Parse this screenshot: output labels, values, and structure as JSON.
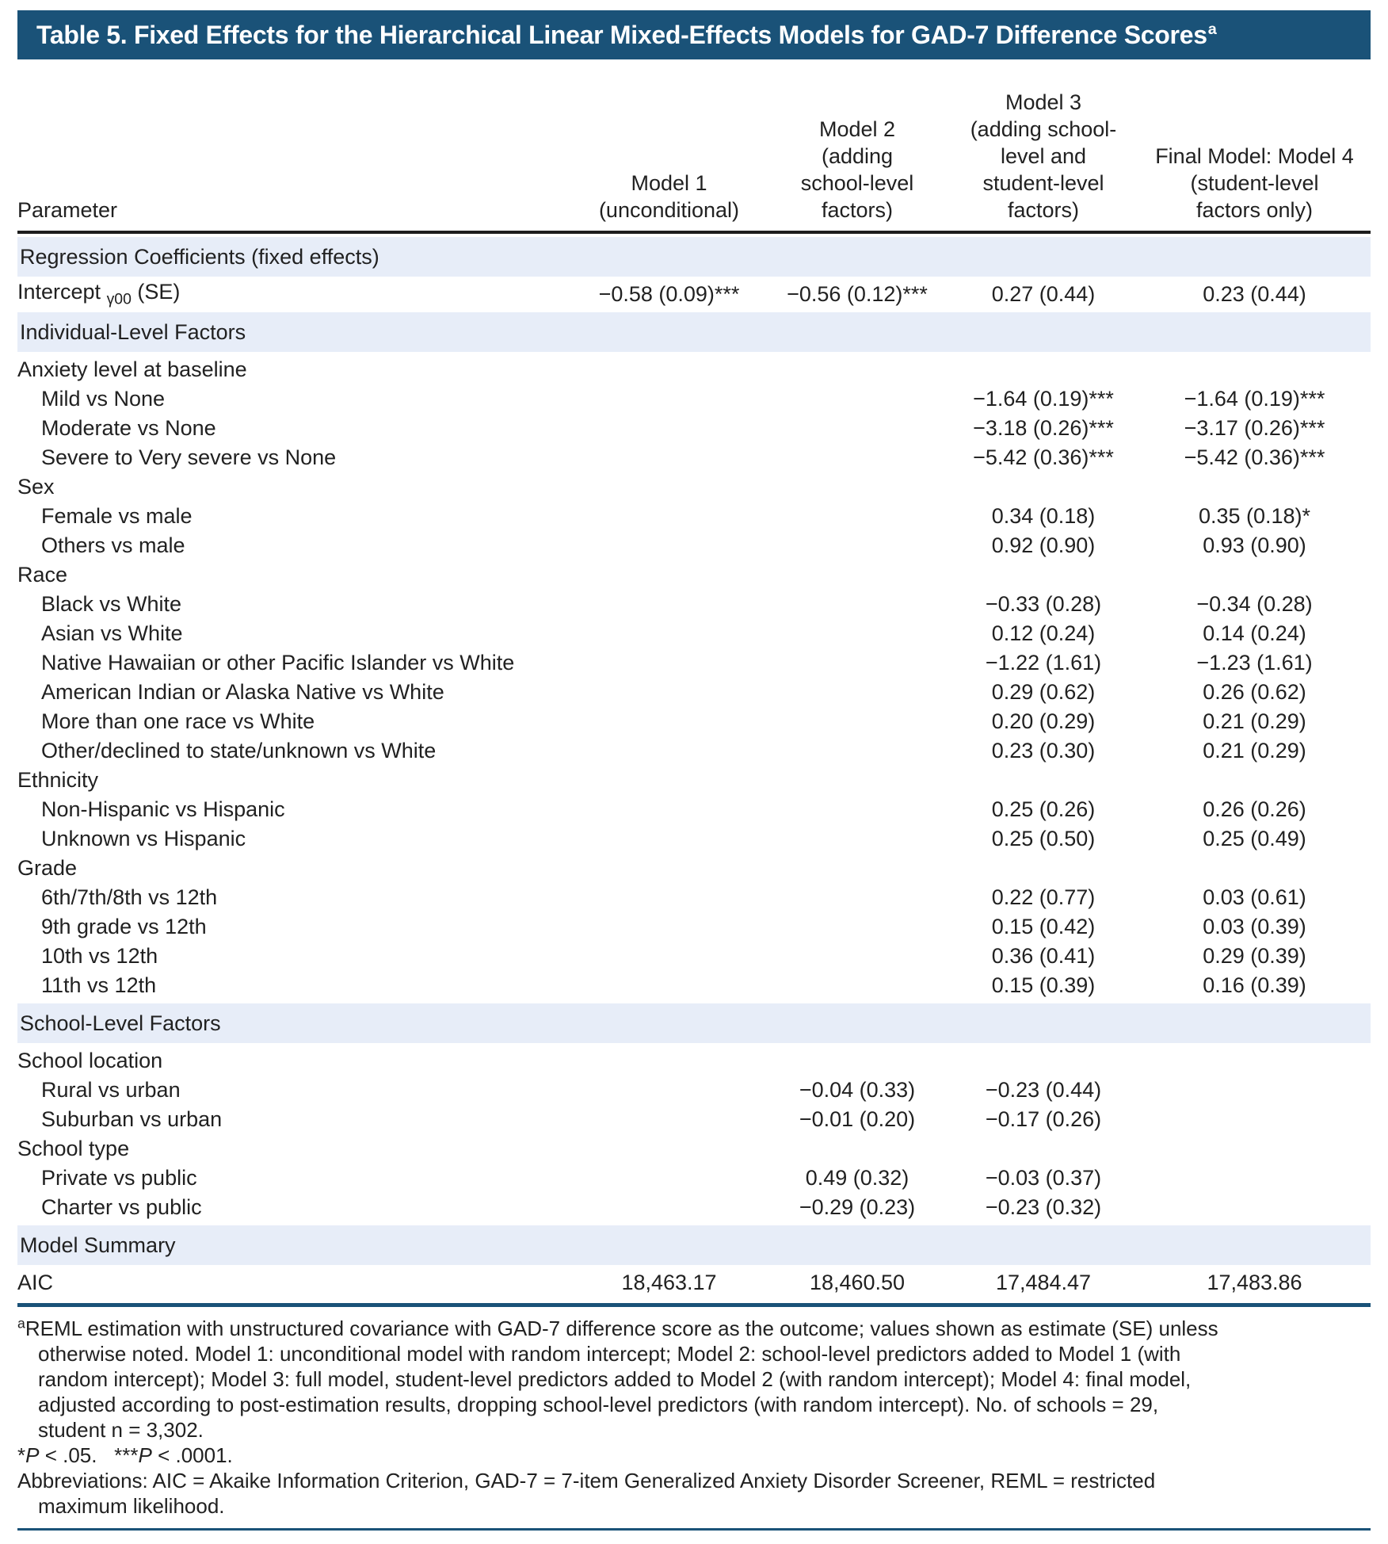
{
  "title": {
    "text": "Table 5. Fixed Effects for the Hierarchical Linear Mixed-Effects Models for GAD-7 Difference Scores",
    "superscript": "a"
  },
  "colors": {
    "title_bg": "#1a5278",
    "band_bg": "#e7edf8",
    "header_rule": "#1c1c1c",
    "blue_rule": "#1a5278",
    "text": "#212121"
  },
  "table": {
    "param_header": "Parameter",
    "model_headers": [
      "Model 1\n(unconditional)",
      "Model 2\n(adding\nschool-level\nfactors)",
      "Model 3\n(adding school-\nlevel and\nstudent-level\nfactors)",
      "Final Model: Model 4\n(student-level\nfactors only)"
    ],
    "rows": [
      {
        "type": "section",
        "label": "Regression Coefficients (fixed effects)"
      },
      {
        "type": "data",
        "label_pre": "Intercept ",
        "label_sub": "γ00",
        "label_post": " (SE)",
        "indent": 0,
        "values": [
          "−0.58 (0.09)***",
          "−0.56 (0.12)***",
          "0.27 (0.44)",
          "0.23 (0.44)"
        ]
      },
      {
        "type": "section",
        "label": "Individual-Level Factors"
      },
      {
        "type": "group",
        "label": "Anxiety level at baseline"
      },
      {
        "type": "data",
        "label": "Mild vs None",
        "indent": 1,
        "values": [
          "",
          "",
          "−1.64 (0.19)***",
          "−1.64 (0.19)***"
        ]
      },
      {
        "type": "data",
        "label": "Moderate vs None",
        "indent": 1,
        "values": [
          "",
          "",
          "−3.18 (0.26)***",
          "−3.17 (0.26)***"
        ]
      },
      {
        "type": "data",
        "label": "Severe to Very severe vs None",
        "indent": 1,
        "values": [
          "",
          "",
          "−5.42 (0.36)***",
          "−5.42 (0.36)***"
        ]
      },
      {
        "type": "group",
        "label": "Sex"
      },
      {
        "type": "data",
        "label": "Female vs male",
        "indent": 1,
        "values": [
          "",
          "",
          "0.34 (0.18)",
          "0.35 (0.18)*"
        ]
      },
      {
        "type": "data",
        "label": "Others vs male",
        "indent": 1,
        "values": [
          "",
          "",
          "0.92 (0.90)",
          "0.93 (0.90)"
        ]
      },
      {
        "type": "group",
        "label": "Race"
      },
      {
        "type": "data",
        "label": "Black vs White",
        "indent": 1,
        "values": [
          "",
          "",
          "−0.33 (0.28)",
          "−0.34 (0.28)"
        ]
      },
      {
        "type": "data",
        "label": "Asian vs White",
        "indent": 1,
        "values": [
          "",
          "",
          "0.12 (0.24)",
          "0.14 (0.24)"
        ]
      },
      {
        "type": "data",
        "label": "Native Hawaiian or other Pacific Islander vs White",
        "indent": 1,
        "values": [
          "",
          "",
          "−1.22 (1.61)",
          "−1.23 (1.61)"
        ]
      },
      {
        "type": "data",
        "label": "American Indian or Alaska Native vs White",
        "indent": 1,
        "values": [
          "",
          "",
          "0.29 (0.62)",
          "0.26 (0.62)"
        ]
      },
      {
        "type": "data",
        "label": "More than one race vs White",
        "indent": 1,
        "values": [
          "",
          "",
          "0.20 (0.29)",
          "0.21 (0.29)"
        ]
      },
      {
        "type": "data",
        "label": "Other/declined to state/unknown vs White",
        "indent": 1,
        "values": [
          "",
          "",
          "0.23 (0.30)",
          "0.21 (0.29)"
        ]
      },
      {
        "type": "group",
        "label": "Ethnicity"
      },
      {
        "type": "data",
        "label": "Non-Hispanic vs Hispanic",
        "indent": 1,
        "values": [
          "",
          "",
          "0.25 (0.26)",
          "0.26 (0.26)"
        ]
      },
      {
        "type": "data",
        "label": "Unknown vs Hispanic",
        "indent": 1,
        "values": [
          "",
          "",
          "0.25 (0.50)",
          "0.25 (0.49)"
        ]
      },
      {
        "type": "group",
        "label": "Grade"
      },
      {
        "type": "data",
        "label": "6th/7th/8th vs 12th",
        "indent": 1,
        "values": [
          "",
          "",
          "0.22 (0.77)",
          "0.03 (0.61)"
        ]
      },
      {
        "type": "data",
        "label": "9th grade vs 12th",
        "indent": 1,
        "values": [
          "",
          "",
          "0.15 (0.42)",
          "0.03 (0.39)"
        ]
      },
      {
        "type": "data",
        "label": "10th vs 12th",
        "indent": 1,
        "values": [
          "",
          "",
          "0.36 (0.41)",
          "0.29 (0.39)"
        ]
      },
      {
        "type": "data",
        "label": "11th vs 12th",
        "indent": 1,
        "values": [
          "",
          "",
          "0.15 (0.39)",
          "0.16 (0.39)"
        ]
      },
      {
        "type": "section",
        "label": "School-Level Factors"
      },
      {
        "type": "group",
        "label": "School location"
      },
      {
        "type": "data",
        "label": "Rural vs urban",
        "indent": 1,
        "values": [
          "",
          "−0.04 (0.33)",
          "−0.23 (0.44)",
          ""
        ]
      },
      {
        "type": "data",
        "label": "Suburban vs urban",
        "indent": 1,
        "values": [
          "",
          "−0.01 (0.20)",
          "−0.17 (0.26)",
          ""
        ]
      },
      {
        "type": "group",
        "label": "School type"
      },
      {
        "type": "data",
        "label": "Private vs public",
        "indent": 1,
        "values": [
          "",
          "0.49 (0.32)",
          "−0.03 (0.37)",
          ""
        ]
      },
      {
        "type": "data",
        "label": "Charter vs public",
        "indent": 1,
        "values": [
          "",
          "−0.29 (0.23)",
          "−0.23 (0.32)",
          ""
        ]
      },
      {
        "type": "section",
        "label": "Model Summary"
      },
      {
        "type": "data",
        "label": "AIC",
        "indent": 0,
        "values": [
          "18,463.17",
          "18,460.50",
          "17,484.47",
          "17,483.86"
        ]
      }
    ]
  },
  "footnotes": {
    "a": {
      "sup": "a",
      "text": "REML estimation with unstructured covariance with GAD-7 difference score as the outcome; values shown as estimate (SE) unless otherwise noted. Model 1: unconditional model with random intercept; Model 2: school-level predictors added to Model 1 (with random intercept); Model 3: full model, student-level predictors added to Model 2 (with random intercept); Model 4: final model, adjusted according to post-estimation results, dropping school-level predictors (with random intercept). No. of schools = 29, student n = 3,302."
    },
    "significance": [
      {
        "t": "*"
      },
      {
        "t": "P",
        "i": true
      },
      {
        "t": " < .05."
      },
      {
        "t": "   "
      },
      {
        "t": "***"
      },
      {
        "t": "P",
        "i": true
      },
      {
        "t": " < .0001."
      }
    ],
    "abbreviations": "Abbreviations: AIC = Akaike Information Criterion, GAD-7 = 7-item Generalized Anxiety Disorder Screener, REML = restricted maximum likelihood."
  }
}
